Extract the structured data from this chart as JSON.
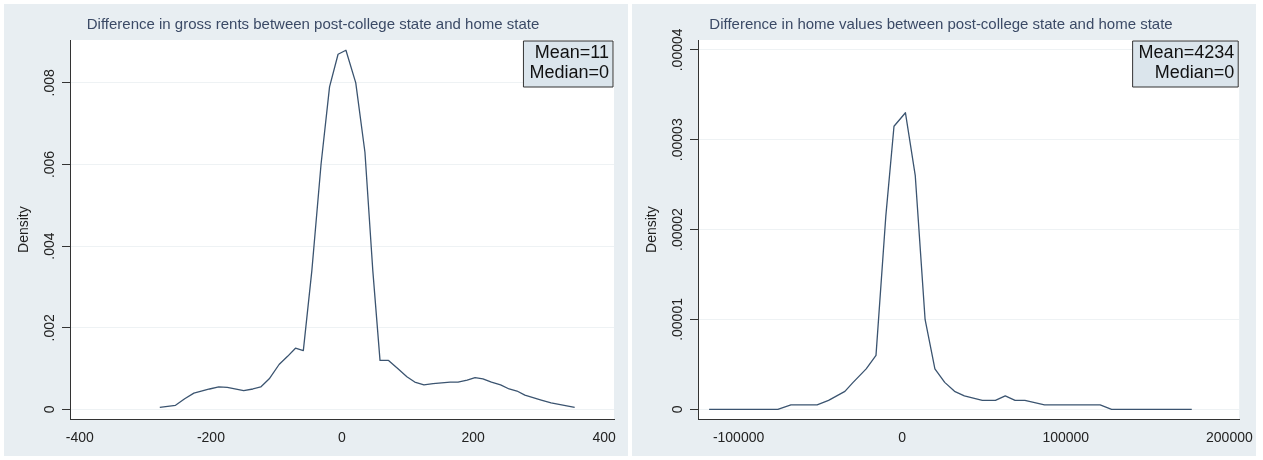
{
  "chart_data": [
    {
      "type": "line",
      "title": "Difference in gross rents between post-college state and home state",
      "ylabel": "Density",
      "annotations": [
        "Mean=11",
        "Median=0"
      ],
      "grid": "y",
      "marker": "none",
      "xlim": [
        -415,
        415
      ],
      "xticks": [
        -400,
        -200,
        0,
        200,
        400
      ],
      "ylim": [
        -0.00024,
        0.00905
      ],
      "yticks": [
        {
          "value": 0,
          "label": "0"
        },
        {
          "value": 0.002,
          "label": ".002"
        },
        {
          "value": 0.004,
          "label": ".004"
        },
        {
          "value": 0.006,
          "label": ".006"
        },
        {
          "value": 0.008,
          "label": ".008"
        }
      ],
      "series": [
        {
          "color": "#3b5470",
          "x": [
            -278,
            -254,
            -240,
            -226,
            -202,
            -188,
            -175,
            -150,
            -136,
            -124,
            -111,
            -96,
            -83,
            -71,
            -59,
            -46,
            -32,
            -19,
            -6,
            6,
            21,
            35,
            47,
            58,
            71,
            85,
            99,
            111,
            125,
            139,
            152,
            165,
            177,
            191,
            203,
            215,
            228,
            242,
            255,
            267,
            279,
            304,
            319,
            355
          ],
          "values": [
            5e-05,
            0.0001,
            0.00026,
            0.0004,
            0.0005,
            0.00055,
            0.00054,
            0.00046,
            0.0005,
            0.00055,
            0.00075,
            0.0011,
            0.0013,
            0.0015,
            0.00144,
            0.0034,
            0.006,
            0.0079,
            0.0087,
            0.0088,
            0.008,
            0.0063,
            0.0034,
            0.0012,
            0.0012,
            0.001,
            0.0008,
            0.00067,
            0.0006,
            0.00063,
            0.00065,
            0.00067,
            0.00067,
            0.00072,
            0.00078,
            0.00075,
            0.00067,
            0.0006,
            0.0005,
            0.00045,
            0.00035,
            0.00023,
            0.00016,
            5e-05
          ]
        }
      ]
    },
    {
      "type": "line",
      "title": "Difference in home values between post-college state and home state",
      "ylabel": "Density",
      "annotations": [
        "Mean=4234",
        "Median=0"
      ],
      "grid": "y",
      "marker": "none",
      "xlim": [
        -124800,
        206000
      ],
      "xticks": [
        -100000,
        0,
        100000,
        200000
      ],
      "ylim": [
        -1.1e-06,
        4.11e-05
      ],
      "yticks": [
        {
          "value": 0,
          "label": "0"
        },
        {
          "value": 1e-05,
          "label": ".00001"
        },
        {
          "value": 2e-05,
          "label": ".00002"
        },
        {
          "value": 3e-05,
          "label": ".00003"
        },
        {
          "value": 4e-05,
          "label": ".00004"
        }
      ],
      "series": [
        {
          "color": "#3b5470",
          "x": [
            -118000,
            -89000,
            -83000,
            -76000,
            -68000,
            -62000,
            -52000,
            -45000,
            -40000,
            -35000,
            -30000,
            -22000,
            -16000,
            -10000,
            -5000,
            2000,
            8000,
            14000,
            20000,
            26000,
            32000,
            38000,
            49000,
            57000,
            63000,
            69000,
            75000,
            87000,
            93000,
            99000,
            105000,
            111000,
            121000,
            128000,
            134000,
            177000
          ],
          "values": [
            0,
            0,
            0,
            0,
            5e-07,
            5e-07,
            5e-07,
            1e-06,
            1.5e-06,
            2e-06,
            3e-06,
            4.5e-06,
            6e-06,
            2.15e-05,
            3.15e-05,
            3.3e-05,
            2.6e-05,
            1e-05,
            4.5e-06,
            3e-06,
            2e-06,
            1.5e-06,
            1e-06,
            1e-06,
            1.5e-06,
            1e-06,
            1e-06,
            5e-07,
            5e-07,
            5e-07,
            5e-07,
            5e-07,
            5e-07,
            0,
            0,
            0
          ]
        }
      ]
    }
  ]
}
